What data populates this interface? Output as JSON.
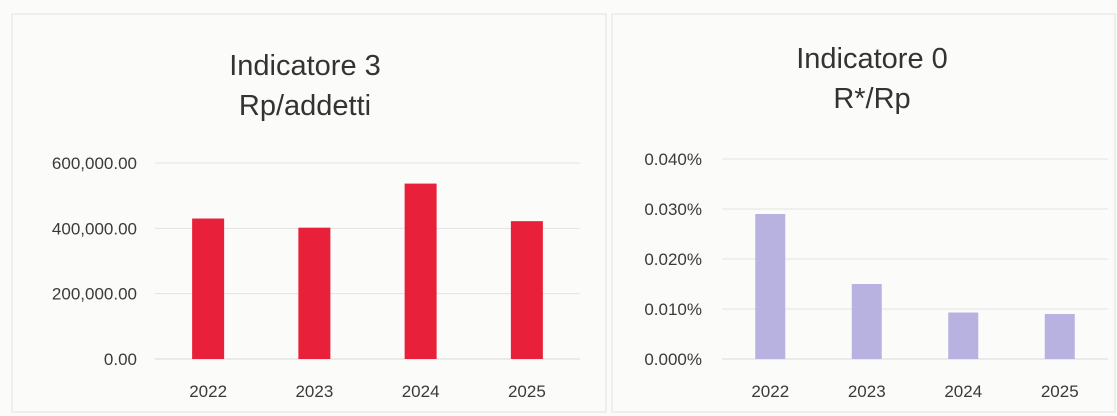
{
  "chart_data": [
    {
      "type": "bar",
      "title": "Indicatore 3",
      "subtitle": "Rp/addetti",
      "categories": [
        "2022",
        "2023",
        "2024",
        "2025"
      ],
      "values": [
        430000,
        402000,
        537000,
        422000
      ],
      "ylim": [
        0,
        600000
      ],
      "yticks": [
        "0.00",
        "200,000.00",
        "400,000.00",
        "600,000.00"
      ],
      "ytick_values": [
        0,
        200000,
        400000,
        600000
      ],
      "grid": true,
      "color": "#e8203a"
    },
    {
      "type": "bar",
      "title": "Indicatore 0",
      "subtitle": "R*/Rp",
      "categories": [
        "2022",
        "2023",
        "2024",
        "2025"
      ],
      "values": [
        0.029,
        0.015,
        0.0093,
        0.009
      ],
      "ylim": [
        0,
        0.04
      ],
      "yticks": [
        "0.000%",
        "0.010%",
        "0.020%",
        "0.030%",
        "0.040%"
      ],
      "ytick_values": [
        0,
        0.01,
        0.02,
        0.03,
        0.04
      ],
      "grid": true,
      "color": "#b8b2e0"
    }
  ]
}
